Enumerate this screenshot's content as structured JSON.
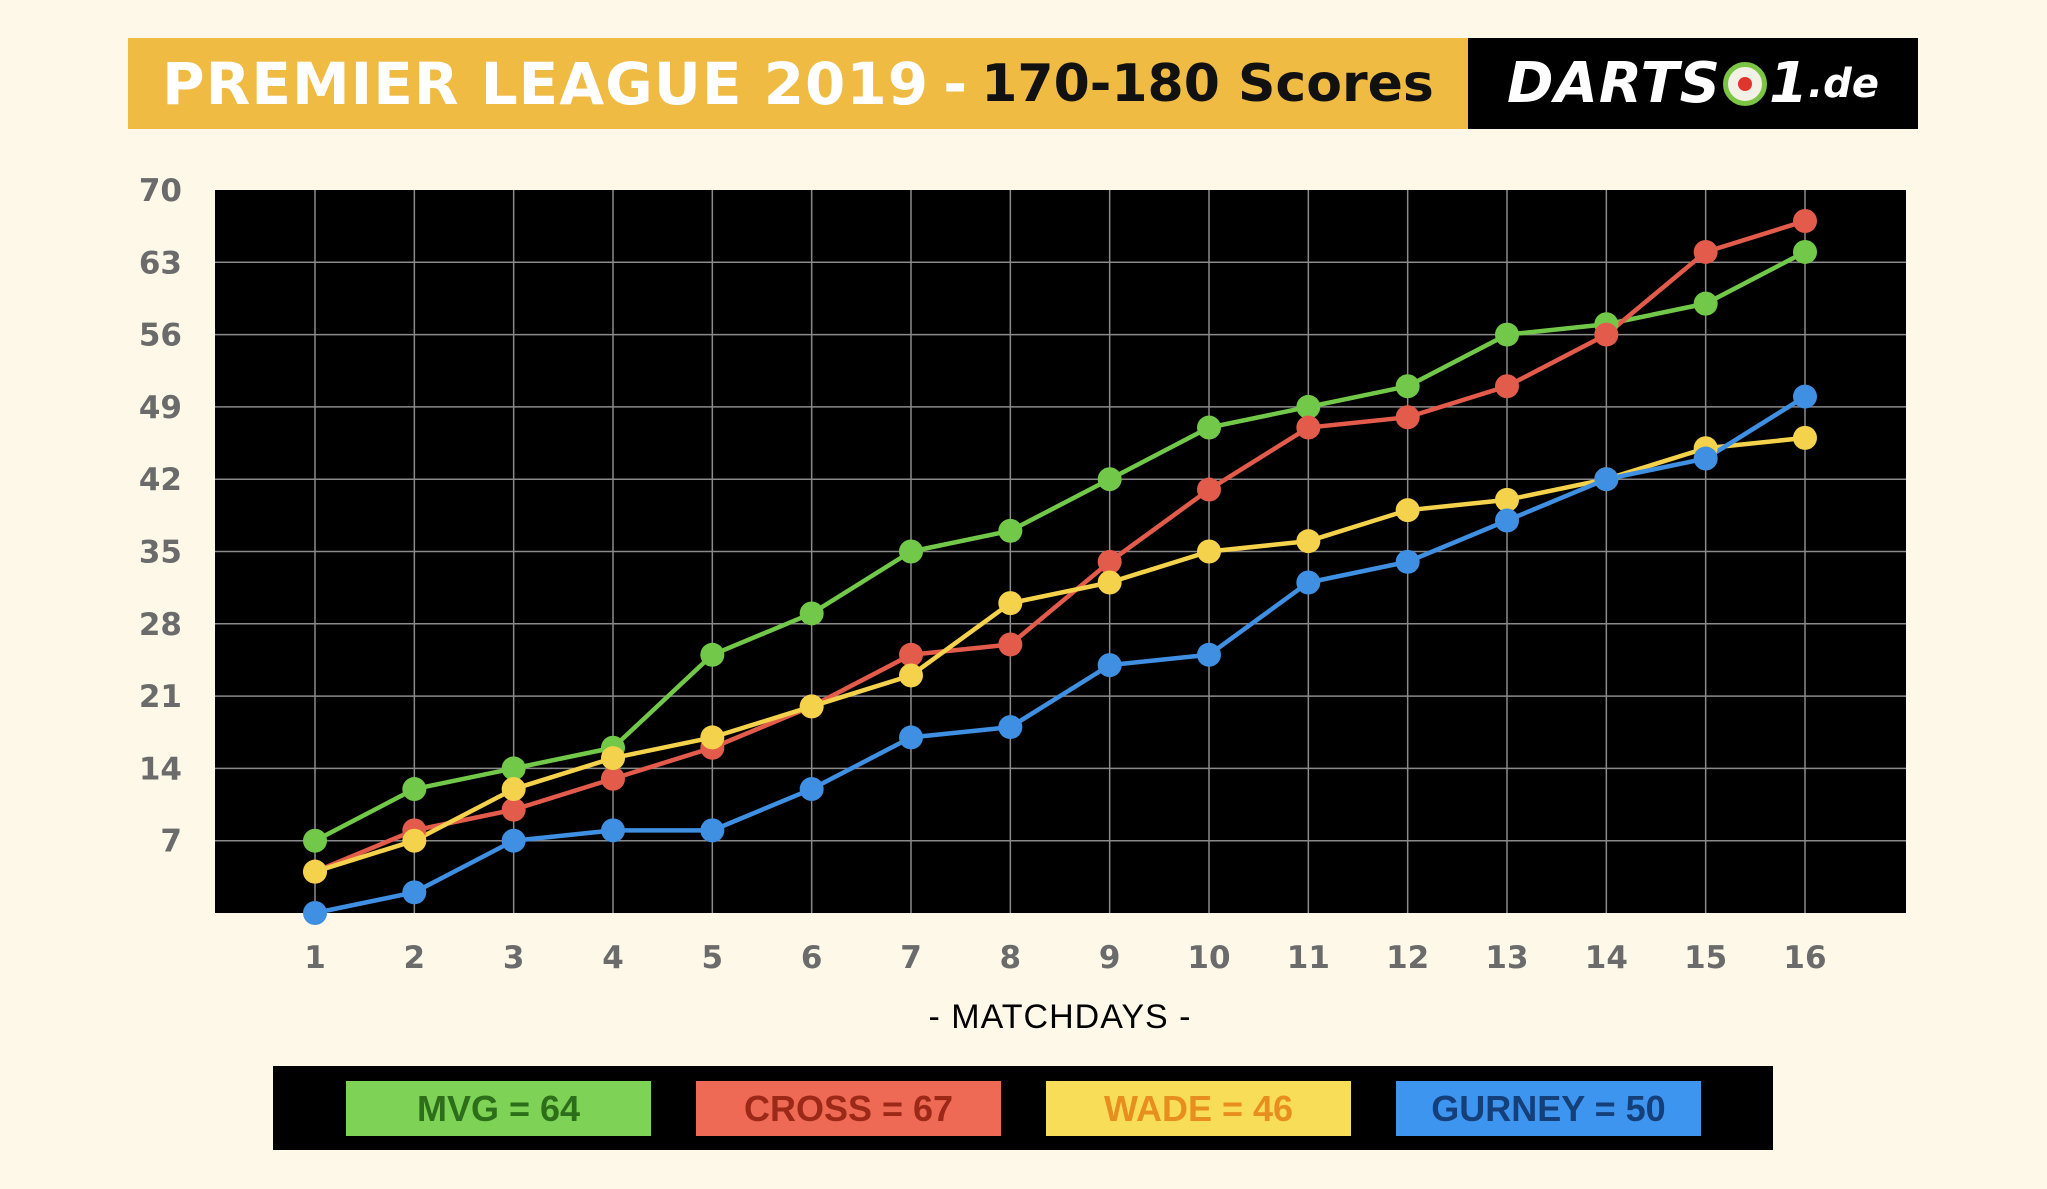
{
  "header": {
    "title_main": "PREMIER LEAGUE 2019",
    "title_sep": "-",
    "title_sub": "170-180 Scores",
    "logo_text": "DARTS",
    "logo_num": "1",
    "logo_suffix": ".de"
  },
  "chart_data": {
    "type": "line",
    "x": [
      1,
      2,
      3,
      4,
      5,
      6,
      7,
      8,
      9,
      10,
      11,
      12,
      13,
      14,
      15,
      16
    ],
    "xlabel": "- MATCHDAYS -",
    "ylabel": "",
    "ylim": [
      0,
      70
    ],
    "yticks": [
      7,
      14,
      21,
      28,
      35,
      42,
      49,
      56,
      63,
      70
    ],
    "grid": true,
    "background": "#000000",
    "series": [
      {
        "name": "MVG",
        "color": "#72c949",
        "values": [
          7,
          12,
          14,
          16,
          25,
          29,
          35,
          37,
          42,
          47,
          49,
          51,
          56,
          57,
          59,
          64
        ]
      },
      {
        "name": "CROSS",
        "color": "#e35b4b",
        "values": [
          4,
          8,
          10,
          13,
          16,
          20,
          25,
          26,
          34,
          41,
          47,
          48,
          51,
          56,
          64,
          67
        ]
      },
      {
        "name": "WADE",
        "color": "#f5d24c",
        "values": [
          4,
          7,
          12,
          15,
          17,
          20,
          23,
          30,
          32,
          35,
          36,
          39,
          40,
          42,
          45,
          46
        ]
      },
      {
        "name": "GURNEY",
        "color": "#3f8fe2",
        "values": [
          0,
          2,
          7,
          8,
          8,
          12,
          17,
          18,
          24,
          25,
          32,
          34,
          38,
          42,
          44,
          50
        ]
      }
    ]
  },
  "legend": [
    {
      "label": "MVG = 64",
      "bg": "#7ed356",
      "fg": "#2d6e1b"
    },
    {
      "label": "CROSS = 67",
      "bg": "#ee6a55",
      "fg": "#9c2817"
    },
    {
      "label": "WADE = 46",
      "bg": "#f8de58",
      "fg": "#e88d1f"
    },
    {
      "label": "GURNEY = 50",
      "bg": "#3e95f0",
      "fg": "#153f78"
    }
  ]
}
